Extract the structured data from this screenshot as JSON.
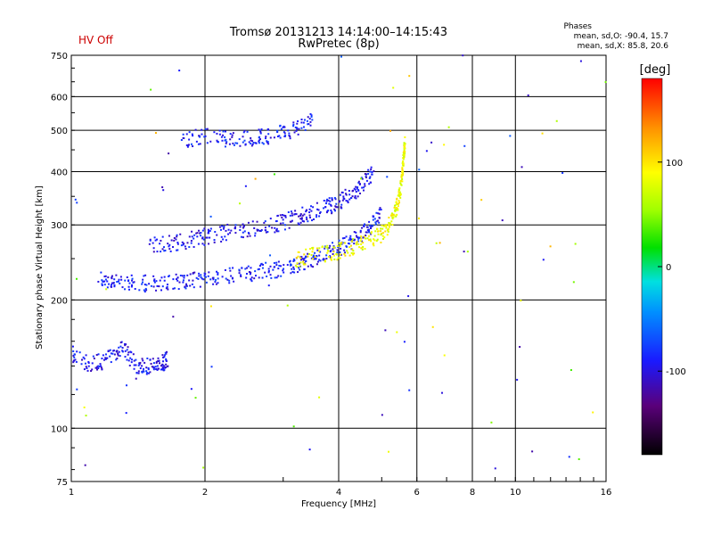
{
  "header": {
    "status": "HV Off",
    "status_color": "#cc0000",
    "title": "Tromsø 20131213 14:14:00–14:15:43",
    "subtitle": "RwPretec (8p)",
    "phases_title": "Phases",
    "phases_line1": "mean, sd,O: -90.4, 15.7",
    "phases_line2": "mean, sd,X:  85.8, 20.6"
  },
  "colorbar": {
    "label": "[deg]",
    "ticks": [
      "100",
      "0",
      "-100"
    ],
    "tick_values": [
      100,
      0,
      -100
    ],
    "range": [
      -180,
      180
    ]
  },
  "chart_data": {
    "type": "scatter",
    "xlabel": "Frequency [MHz]",
    "ylabel": "Stationary phase Virtual Height [km]",
    "xscale": "log",
    "yscale": "log",
    "xlim": [
      1,
      16
    ],
    "ylim": [
      75,
      750
    ],
    "xticks": [
      1,
      2,
      4,
      6,
      8,
      10,
      16
    ],
    "xtick_labels": [
      "1",
      "2",
      "4",
      "6",
      "8",
      "10",
      "16"
    ],
    "yticks": [
      75,
      100,
      200,
      300,
      400,
      500,
      600,
      750
    ],
    "ytick_labels": [
      "75",
      "100",
      "200",
      "300",
      "400",
      "500",
      "600",
      "750"
    ],
    "grid": true,
    "color_variable": "phase [deg]",
    "traces": [
      {
        "kind": "O-mode F-layer trace",
        "phase_mean": -90,
        "x": [
          1.15,
          1.25,
          1.4,
          1.6,
          1.8,
          2.0,
          2.3,
          2.6,
          2.9,
          3.2,
          3.5,
          3.8,
          4.1,
          4.4,
          4.7,
          5.0
        ],
        "y": [
          225,
          220,
          218,
          220,
          222,
          225,
          228,
          232,
          236,
          242,
          250,
          258,
          268,
          280,
          295,
          320
        ]
      },
      {
        "kind": "O-mode F-layer multiple trace",
        "phase_mean": -95,
        "x": [
          1.5,
          1.7,
          1.9,
          2.1,
          2.4,
          2.7,
          3.0,
          3.3,
          3.6,
          3.9,
          4.2,
          4.5,
          4.8
        ],
        "y": [
          270,
          272,
          278,
          285,
          290,
          296,
          305,
          315,
          325,
          335,
          350,
          370,
          400
        ]
      },
      {
        "kind": "X-mode F-layer trace",
        "phase_mean": 85,
        "x": [
          3.2,
          3.6,
          4.0,
          4.4,
          4.8,
          5.1,
          5.3,
          5.45,
          5.55,
          5.6,
          5.65
        ],
        "y": [
          250,
          255,
          260,
          268,
          278,
          290,
          310,
          340,
          380,
          430,
          480
        ]
      },
      {
        "kind": "O-mode upper trace",
        "phase_mean": -90,
        "x": [
          1.75,
          2.0,
          2.3,
          2.6,
          2.9,
          3.2,
          3.5
        ],
        "y": [
          470,
          485,
          475,
          480,
          490,
          500,
          540
        ]
      },
      {
        "kind": "E-region trace",
        "phase_mean": -95,
        "x": [
          1.0,
          1.1,
          1.2,
          1.3,
          1.4,
          1.5,
          1.6,
          1.65
        ],
        "y": [
          150,
          140,
          145,
          155,
          140,
          140,
          142,
          145
        ]
      }
    ]
  }
}
